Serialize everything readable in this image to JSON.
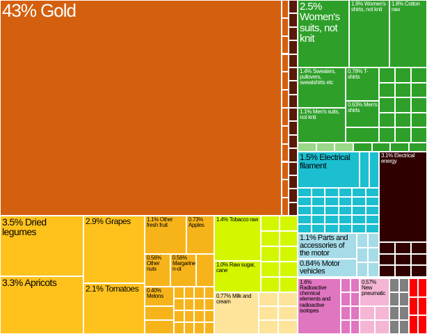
{
  "chart_data": {
    "type": "treemap",
    "colors": {
      "mineral": "#d4600f",
      "mineral_dark": "#5a1a08",
      "textiles": "#2ea02a",
      "textiles_light": "#9ad88a",
      "machinery": "#1bbfd0",
      "transport": "#a6dce8",
      "energy": "#300000",
      "chemicals": "#e075c0",
      "plastics": "#f5b5d5",
      "metals": "#808080",
      "other": "#ff0000",
      "vegetable": "#ffc21c",
      "vegetable_dark": "#f7b41a",
      "foodstuffs": "#d4f700",
      "animal": "#fde49a"
    },
    "tiles": [
      {
        "label": "43% Gold",
        "value": 43,
        "group": "mineral"
      },
      {
        "label": "2.5% Women's suits, not knit",
        "value": 2.5,
        "group": "textiles"
      },
      {
        "label": "1.9% Women's shirts, not knit",
        "value": 1.9,
        "group": "textiles"
      },
      {
        "label": "1.8% Cotton raw",
        "value": 1.8,
        "group": "textiles"
      },
      {
        "label": "1.4% Sweaters, pullovers, sweatshirts etc",
        "value": 1.4,
        "group": "textiles"
      },
      {
        "label": "0.78% T-shirts",
        "value": 0.78,
        "group": "textiles"
      },
      {
        "label": "0.63% Men's shirts",
        "value": 0.63,
        "group": "textiles"
      },
      {
        "label": "1.1% Men's suits, not knit",
        "value": 1.1,
        "group": "textiles"
      },
      {
        "label": "1.5% Electrical filament",
        "value": 1.5,
        "group": "machinery"
      },
      {
        "label": "3.1% Electrical energy",
        "value": 3.1,
        "group": "energy"
      },
      {
        "label": "1.1% Parts and accessories of the motor",
        "value": 1.1,
        "group": "transport"
      },
      {
        "label": "0.84% Motor vehicles",
        "value": 0.84,
        "group": "transport"
      },
      {
        "label": "1.6% Radioactive chemical elements and radioactive isotopes",
        "value": 1.6,
        "group": "chemicals"
      },
      {
        "label": "0.57% New pneumatic",
        "value": 0.57,
        "group": "plastics"
      },
      {
        "label": "3.5% Dried legumes",
        "value": 3.5,
        "group": "vegetable"
      },
      {
        "label": "3.3% Apricots",
        "value": 3.3,
        "group": "vegetable"
      },
      {
        "label": "2.9% Grapes",
        "value": 2.9,
        "group": "vegetable"
      },
      {
        "label": "2.1% Tomatoes",
        "value": 2.1,
        "group": "vegetable"
      },
      {
        "label": "1.1% Other fresh fruit",
        "value": 1.1,
        "group": "vegetable_dark"
      },
      {
        "label": "0.73% Apples",
        "value": 0.73,
        "group": "vegetable_dark"
      },
      {
        "label": "0.56% Other nuts",
        "value": 0.56,
        "group": "vegetable_dark"
      },
      {
        "label": "0.56% Margarine, n-ot",
        "value": 0.56,
        "group": "vegetable_dark"
      },
      {
        "label": "0.40% Melons",
        "value": 0.4,
        "group": "vegetable_dark"
      },
      {
        "label": "1.4% Tobacco raw",
        "value": 1.4,
        "group": "foodstuffs"
      },
      {
        "label": "1.0% Raw sugar, cane",
        "value": 1.0,
        "group": "foodstuffs"
      },
      {
        "label": "0.77% Milk and cream",
        "value": 0.77,
        "group": "animal"
      }
    ]
  }
}
